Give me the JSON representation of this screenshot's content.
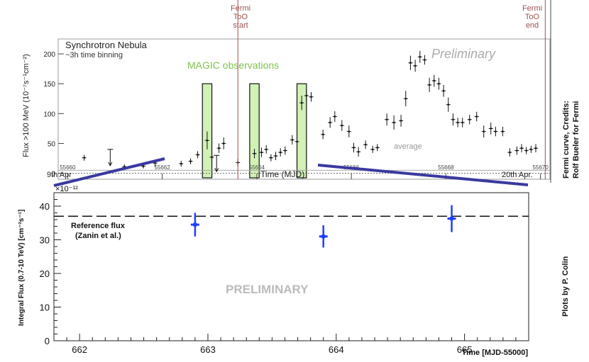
{
  "chart_data": [
    {
      "type": "scatter",
      "title": "Synchrotron Nebula",
      "subtitle": "~3h time binning",
      "watermark": "Preliminary",
      "ylabel": "Flux >100 MeV (10⁻⁷s⁻¹cm⁻²)",
      "xlabel": "Time (MJD)",
      "xlim": [
        55659.8,
        55670.2
      ],
      "ylim": [
        -10,
        225
      ],
      "x_ticks": [
        55660,
        55662,
        55664,
        55666,
        55668,
        55670
      ],
      "x_tick_labels": [
        "55660",
        "55662",
        "55664",
        "55666",
        "55668",
        "55670"
      ],
      "y_ticks": [
        0,
        50,
        100,
        150,
        200
      ],
      "y_tick_labels": [
        "0",
        "50",
        "100",
        "150",
        "200"
      ],
      "date_labels": {
        "start": "9th Apr",
        "end": "20th Apr."
      },
      "average_label": "average",
      "average_value": 5,
      "magic_label": "MAGIC observations",
      "magic_windows": [
        [
          55662.85,
          55663.05
        ],
        [
          55663.85,
          55664.05
        ],
        [
          55664.85,
          55665.05
        ]
      ],
      "fermi_too_start": {
        "x": 55663.6,
        "label_lines": [
          "Fermi",
          "ToO",
          "start"
        ]
      },
      "fermi_too_end": {
        "x": 55670.1,
        "label_lines": [
          "Fermi",
          "ToO",
          "end"
        ]
      },
      "credits": [
        "Fermi curve, Credits:",
        "Rolf Bueler for Fermi"
      ],
      "points": [
        {
          "x": 55660.35,
          "y": 26,
          "err": 5
        },
        {
          "x": 55660.9,
          "y": 0,
          "err": 0,
          "upper_limit": 40
        },
        {
          "x": 55661.2,
          "y": 11,
          "err": 4
        },
        {
          "x": 55661.6,
          "y": 12,
          "err": 4
        },
        {
          "x": 55661.85,
          "y": 17,
          "err": 6
        },
        {
          "x": 55662.4,
          "y": 16,
          "err": 5
        },
        {
          "x": 55662.6,
          "y": 20,
          "err": 5
        },
        {
          "x": 55662.75,
          "y": 31,
          "err": 6
        },
        {
          "x": 55662.95,
          "y": 55,
          "err": 15
        },
        {
          "x": 55663.05,
          "y": 27,
          "err": 10
        },
        {
          "x": 55663.15,
          "y": 0,
          "err": 0,
          "upper_limit": 30
        },
        {
          "x": 55663.2,
          "y": 42,
          "err": 8
        },
        {
          "x": 55663.3,
          "y": 50,
          "err": 10
        },
        {
          "x": 55663.6,
          "y": 18,
          "err": 6
        },
        {
          "x": 55663.95,
          "y": 33,
          "err": 8
        },
        {
          "x": 55664.1,
          "y": 35,
          "err": 8
        },
        {
          "x": 55664.2,
          "y": 40,
          "err": 7
        },
        {
          "x": 55664.3,
          "y": 26,
          "err": 6
        },
        {
          "x": 55664.4,
          "y": 29,
          "err": 7
        },
        {
          "x": 55664.5,
          "y": 35,
          "err": 7
        },
        {
          "x": 55664.6,
          "y": 38,
          "err": 7
        },
        {
          "x": 55664.75,
          "y": 56,
          "err": 8
        },
        {
          "x": 55664.85,
          "y": 53,
          "err": 8
        },
        {
          "x": 55664.95,
          "y": 118,
          "err": 12
        },
        {
          "x": 55665.05,
          "y": 130,
          "err": 10
        },
        {
          "x": 55665.15,
          "y": 128,
          "err": 8
        },
        {
          "x": 55665.4,
          "y": 65,
          "err": 8
        },
        {
          "x": 55665.55,
          "y": 85,
          "err": 9
        },
        {
          "x": 55665.65,
          "y": 95,
          "err": 9
        },
        {
          "x": 55665.8,
          "y": 80,
          "err": 9
        },
        {
          "x": 55665.95,
          "y": 70,
          "err": 10
        },
        {
          "x": 55666.05,
          "y": 43,
          "err": 8
        },
        {
          "x": 55666.15,
          "y": 36,
          "err": 8
        },
        {
          "x": 55666.3,
          "y": 48,
          "err": 7
        },
        {
          "x": 55666.45,
          "y": 40,
          "err": 6
        },
        {
          "x": 55666.55,
          "y": 43,
          "err": 6
        },
        {
          "x": 55666.75,
          "y": 90,
          "err": 10
        },
        {
          "x": 55666.9,
          "y": 85,
          "err": 12
        },
        {
          "x": 55667.05,
          "y": 88,
          "err": 10
        },
        {
          "x": 55667.15,
          "y": 125,
          "err": 13
        },
        {
          "x": 55667.25,
          "y": 185,
          "err": 12
        },
        {
          "x": 55667.35,
          "y": 180,
          "err": 10
        },
        {
          "x": 55667.45,
          "y": 195,
          "err": 10
        },
        {
          "x": 55667.55,
          "y": 190,
          "err": 8
        },
        {
          "x": 55667.65,
          "y": 148,
          "err": 12
        },
        {
          "x": 55667.75,
          "y": 155,
          "err": 10
        },
        {
          "x": 55667.85,
          "y": 150,
          "err": 10
        },
        {
          "x": 55667.95,
          "y": 138,
          "err": 10
        },
        {
          "x": 55668.05,
          "y": 115,
          "err": 12
        },
        {
          "x": 55668.15,
          "y": 90,
          "err": 10
        },
        {
          "x": 55668.25,
          "y": 85,
          "err": 8
        },
        {
          "x": 55668.35,
          "y": 85,
          "err": 8
        },
        {
          "x": 55668.5,
          "y": 90,
          "err": 8
        },
        {
          "x": 55668.65,
          "y": 95,
          "err": 8
        },
        {
          "x": 55668.8,
          "y": 70,
          "err": 10
        },
        {
          "x": 55668.95,
          "y": 75,
          "err": 10
        },
        {
          "x": 55669.05,
          "y": 70,
          "err": 8
        },
        {
          "x": 55669.2,
          "y": 70,
          "err": 8
        },
        {
          "x": 55669.35,
          "y": 35,
          "err": 7
        },
        {
          "x": 55669.5,
          "y": 38,
          "err": 7
        },
        {
          "x": 55669.6,
          "y": 42,
          "err": 7
        },
        {
          "x": 55669.7,
          "y": 38,
          "err": 6
        },
        {
          "x": 55669.8,
          "y": 40,
          "err": 6
        },
        {
          "x": 55669.9,
          "y": 42,
          "err": 7
        }
      ]
    },
    {
      "type": "scatter",
      "watermark": "PRELIMINARY",
      "ylabel": "Integral Flux (0.7-10 TeV) [cm⁻²s⁻¹]",
      "xlabel": "Time [MJD-55000]",
      "y_multiplier": "×10⁻¹²",
      "xlim": [
        661.8,
        665.5
      ],
      "ylim": [
        0,
        44
      ],
      "x_ticks": [
        662,
        663,
        664,
        665
      ],
      "x_tick_labels": [
        "662",
        "663",
        "664",
        "665"
      ],
      "y_ticks": [
        0,
        10,
        20,
        30,
        40
      ],
      "y_tick_labels": [
        "0",
        "10",
        "20",
        "30",
        "40"
      ],
      "reference_flux": 37,
      "reference_label_lines": [
        "Reference flux",
        "(Zanin et al.)"
      ],
      "credits": "Plots by P. Colin",
      "points": [
        {
          "x": 662.9,
          "y": 34.5,
          "err": 3.5
        },
        {
          "x": 663.9,
          "y": 31,
          "err": 3.3
        },
        {
          "x": 664.9,
          "y": 36.3,
          "err": 4
        }
      ],
      "color": "#1f3fff"
    }
  ]
}
